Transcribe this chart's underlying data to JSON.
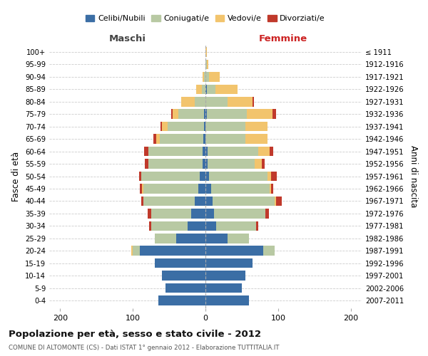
{
  "age_groups": [
    "0-4",
    "5-9",
    "10-14",
    "15-19",
    "20-24",
    "25-29",
    "30-34",
    "35-39",
    "40-44",
    "45-49",
    "50-54",
    "55-59",
    "60-64",
    "65-69",
    "70-74",
    "75-79",
    "80-84",
    "85-89",
    "90-94",
    "95-99",
    "100+"
  ],
  "birth_years": [
    "2007-2011",
    "2002-2006",
    "1997-2001",
    "1992-1996",
    "1987-1991",
    "1982-1986",
    "1977-1981",
    "1972-1976",
    "1967-1971",
    "1962-1966",
    "1957-1961",
    "1952-1956",
    "1947-1951",
    "1942-1946",
    "1937-1941",
    "1932-1936",
    "1927-1931",
    "1922-1926",
    "1917-1921",
    "1912-1916",
    "≤ 1911"
  ],
  "male": {
    "celibe": [
      65,
      55,
      60,
      70,
      90,
      40,
      25,
      20,
      15,
      10,
      8,
      4,
      4,
      3,
      2,
      2,
      0,
      0,
      0,
      0,
      0
    ],
    "coniugato": [
      0,
      0,
      0,
      0,
      10,
      30,
      50,
      55,
      70,
      75,
      80,
      75,
      75,
      60,
      50,
      35,
      15,
      5,
      2,
      0,
      0
    ],
    "vedovo": [
      0,
      0,
      0,
      0,
      2,
      0,
      0,
      0,
      0,
      2,
      0,
      0,
      0,
      5,
      8,
      8,
      18,
      8,
      2,
      0,
      0
    ],
    "divorziato": [
      0,
      0,
      0,
      0,
      0,
      0,
      3,
      5,
      3,
      3,
      3,
      4,
      5,
      4,
      2,
      2,
      0,
      0,
      0,
      0,
      0
    ]
  },
  "female": {
    "nubile": [
      60,
      50,
      55,
      65,
      80,
      30,
      15,
      12,
      10,
      8,
      5,
      3,
      3,
      0,
      0,
      2,
      0,
      2,
      0,
      0,
      0
    ],
    "coniugata": [
      0,
      0,
      0,
      0,
      15,
      30,
      55,
      70,
      85,
      80,
      80,
      65,
      70,
      55,
      55,
      55,
      30,
      12,
      5,
      2,
      0
    ],
    "vedova": [
      0,
      0,
      0,
      0,
      0,
      0,
      0,
      0,
      2,
      2,
      5,
      10,
      15,
      30,
      30,
      35,
      35,
      30,
      15,
      2,
      2
    ],
    "divorziata": [
      0,
      0,
      0,
      0,
      0,
      0,
      3,
      5,
      8,
      3,
      8,
      3,
      5,
      0,
      0,
      5,
      2,
      0,
      0,
      0,
      0
    ]
  },
  "colors": {
    "celibe": "#3b6ea5",
    "coniugato": "#b8c9a3",
    "vedovo": "#f2c46d",
    "divorziato": "#c0392b"
  },
  "xlim": [
    -215,
    215
  ],
  "title": "Popolazione per età, sesso e stato civile - 2012",
  "subtitle": "COMUNE DI ALTOMONTE (CS) - Dati ISTAT 1° gennaio 2012 - Elaborazione TUTTITALIA.IT",
  "ylabel_left": "Fasce di età",
  "ylabel_right": "Anni di nascita",
  "maschi_label": "Maschi",
  "femmine_label": "Femmine",
  "legend_labels": [
    "Celibi/Nubili",
    "Coniugati/e",
    "Vedovi/e",
    "Divorziati/e"
  ],
  "bg_color": "#ffffff",
  "grid_color": "#cccccc"
}
